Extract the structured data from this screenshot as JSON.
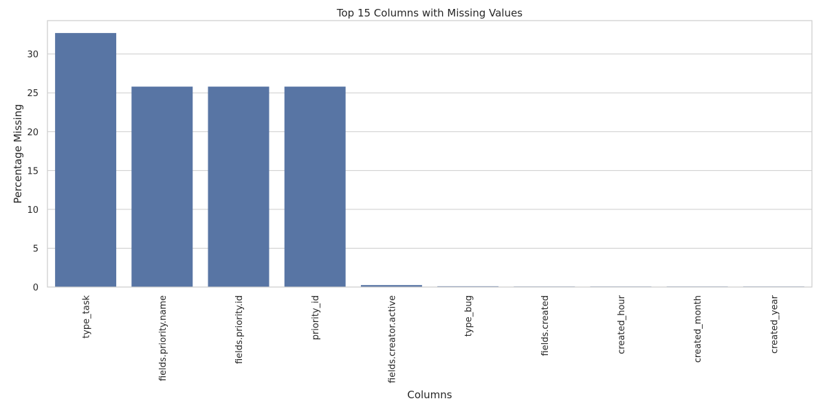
{
  "chart_data": {
    "type": "bar",
    "title": "Top 15 Columns with Missing Values",
    "xlabel": "Columns",
    "ylabel": "Percentage Missing",
    "categories": [
      "type_task",
      "fields.priority.name",
      "fields.priority.id",
      "priority_id",
      "fields.creator.active",
      "type_bug",
      "fields.created",
      "created_hour",
      "created_month",
      "created_year"
    ],
    "values": [
      32.7,
      25.8,
      25.8,
      25.8,
      0.25,
      0.1,
      0.05,
      0.05,
      0.05,
      0.05
    ],
    "ylim": [
      0,
      34.3
    ],
    "yticks": [
      0,
      5,
      10,
      15,
      20,
      25,
      30
    ],
    "grid": "horizontal",
    "bar_color": "#5875a4",
    "grid_color": "#cccccc"
  }
}
